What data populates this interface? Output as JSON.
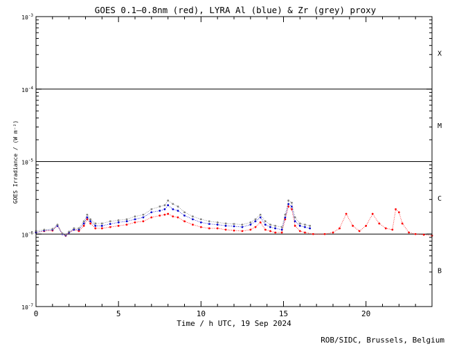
{
  "chart_data": {
    "type": "scatter",
    "title": "GOES 0.1—0.8nm (red), LYRA Al (blue) & Zr (grey) proxy",
    "xlabel": "Time / h UTC, 19 Sep 2024",
    "ylabel": "GOES Irradiance / (W m⁻²)",
    "xlim": [
      0,
      24
    ],
    "ylim": [
      1e-07,
      0.001
    ],
    "yscale": "log",
    "x_ticks": [
      0,
      5,
      10,
      15,
      20
    ],
    "y_ticks": [
      {
        "value": 1e-07,
        "base": "10",
        "exp": "-7"
      },
      {
        "value": 1e-06,
        "base": "10",
        "exp": "-6"
      },
      {
        "value": 1e-05,
        "base": "10",
        "exp": "-5"
      },
      {
        "value": 0.0001,
        "base": "10",
        "exp": "-4"
      },
      {
        "value": 0.001,
        "base": "10",
        "exp": "-3"
      }
    ],
    "flare_classes": [
      {
        "label": "B",
        "value": 3.16e-07
      },
      {
        "label": "C",
        "value": 3.16e-06
      },
      {
        "label": "M",
        "value": 3.16e-05
      },
      {
        "label": "X",
        "value": 0.000316
      }
    ],
    "threshold_lines": [
      1e-06,
      1e-05,
      0.0001
    ],
    "series": [
      {
        "name": "GOES 0.1—0.8nm",
        "color": "#ff0000",
        "x": [
          0.0,
          0.5,
          1.0,
          1.3,
          1.6,
          1.8,
          2.0,
          2.3,
          2.6,
          2.9,
          3.1,
          3.3,
          3.6,
          4.0,
          4.5,
          5.0,
          5.5,
          6.0,
          6.5,
          7.0,
          7.5,
          7.8,
          8.0,
          8.3,
          8.6,
          9.0,
          9.5,
          10.0,
          10.5,
          11.0,
          11.5,
          12.0,
          12.5,
          13.0,
          13.3,
          13.6,
          13.9,
          14.2,
          14.5,
          14.9,
          15.1,
          15.3,
          15.5,
          15.7,
          16.0,
          16.3,
          16.8,
          17.5,
          18.0,
          18.4,
          18.8,
          19.2,
          19.6,
          20.0,
          20.4,
          20.8,
          21.2,
          21.6,
          21.8,
          22.0,
          22.2,
          22.6,
          23.0,
          23.5,
          24.0
        ],
        "y": [
          1.05e-06,
          1.1e-06,
          1.12e-06,
          1.3e-06,
          1e-06,
          9.5e-07,
          1.05e-06,
          1.15e-06,
          1.1e-06,
          1.3e-06,
          1.6e-06,
          1.4e-06,
          1.2e-06,
          1.2e-06,
          1.25e-06,
          1.3e-06,
          1.35e-06,
          1.45e-06,
          1.5e-06,
          1.7e-06,
          1.8e-06,
          1.85e-06,
          1.9e-06,
          1.75e-06,
          1.7e-06,
          1.5e-06,
          1.35e-06,
          1.25e-06,
          1.2e-06,
          1.2e-06,
          1.15e-06,
          1.12e-06,
          1.1e-06,
          1.15e-06,
          1.25e-06,
          1.45e-06,
          1.15e-06,
          1.1e-06,
          1.05e-06,
          1.05e-06,
          1.6e-06,
          2.4e-06,
          2.2e-06,
          1.3e-06,
          1.1e-06,
          1.05e-06,
          1e-06,
          1e-06,
          1.05e-06,
          1.2e-06,
          1.9e-06,
          1.3e-06,
          1.1e-06,
          1.3e-06,
          1.9e-06,
          1.4e-06,
          1.2e-06,
          1.15e-06,
          2.2e-06,
          2e-06,
          1.4e-06,
          1.05e-06,
          1e-06,
          9.8e-07,
          9.5e-07
        ]
      },
      {
        "name": "LYRA Al",
        "color": "#0000cc",
        "x": [
          0.0,
          0.5,
          1.0,
          1.3,
          1.6,
          1.8,
          2.0,
          2.3,
          2.6,
          2.9,
          3.1,
          3.3,
          3.6,
          4.0,
          4.5,
          5.0,
          5.5,
          6.0,
          6.5,
          7.0,
          7.5,
          7.8,
          8.0,
          8.3,
          8.6,
          9.0,
          9.5,
          10.0,
          10.5,
          11.0,
          11.5,
          12.0,
          12.5,
          13.0,
          13.3,
          13.6,
          13.9,
          14.2,
          14.5,
          14.9,
          15.1,
          15.3,
          15.5,
          15.7,
          16.0,
          16.3,
          16.6
        ],
        "y": [
          1.05e-06,
          1.12e-06,
          1.15e-06,
          1.3e-06,
          1e-06,
          9.6e-07,
          1.05e-06,
          1.15e-06,
          1.15e-06,
          1.4e-06,
          1.7e-06,
          1.5e-06,
          1.3e-06,
          1.3e-06,
          1.38e-06,
          1.45e-06,
          1.5e-06,
          1.6e-06,
          1.7e-06,
          2e-06,
          2.1e-06,
          2.2e-06,
          2.5e-06,
          2.2e-06,
          2.1e-06,
          1.8e-06,
          1.6e-06,
          1.45e-06,
          1.38e-06,
          1.35e-06,
          1.3e-06,
          1.28e-06,
          1.25e-06,
          1.35e-06,
          1.5e-06,
          1.7e-06,
          1.35e-06,
          1.25e-06,
          1.2e-06,
          1.15e-06,
          1.7e-06,
          2.6e-06,
          2.4e-06,
          1.5e-06,
          1.3e-06,
          1.25e-06,
          1.2e-06
        ]
      },
      {
        "name": "LYRA Zr",
        "color": "#808080",
        "x": [
          0.0,
          0.5,
          1.0,
          1.3,
          1.6,
          1.8,
          2.0,
          2.3,
          2.6,
          2.9,
          3.1,
          3.3,
          3.6,
          4.0,
          4.5,
          5.0,
          5.5,
          6.0,
          6.5,
          7.0,
          7.5,
          7.8,
          8.0,
          8.3,
          8.6,
          9.0,
          9.5,
          10.0,
          10.5,
          11.0,
          11.5,
          12.0,
          12.5,
          13.0,
          13.3,
          13.6,
          13.9,
          14.2,
          14.5,
          14.9,
          15.1,
          15.3,
          15.5,
          15.7,
          16.0,
          16.3,
          16.6
        ],
        "y": [
          1.1e-06,
          1.15e-06,
          1.18e-06,
          1.35e-06,
          1.02e-06,
          9.8e-07,
          1.08e-06,
          1.2e-06,
          1.2e-06,
          1.5e-06,
          1.85e-06,
          1.6e-06,
          1.4e-06,
          1.4e-06,
          1.5e-06,
          1.55e-06,
          1.6e-06,
          1.75e-06,
          1.85e-06,
          2.2e-06,
          2.4e-06,
          2.5e-06,
          2.9e-06,
          2.6e-06,
          2.4e-06,
          2e-06,
          1.75e-06,
          1.6e-06,
          1.5e-06,
          1.45e-06,
          1.4e-06,
          1.38e-06,
          1.35e-06,
          1.45e-06,
          1.6e-06,
          1.85e-06,
          1.5e-06,
          1.35e-06,
          1.3e-06,
          1.25e-06,
          1.85e-06,
          2.9e-06,
          2.7e-06,
          1.7e-06,
          1.4e-06,
          1.35e-06,
          1.3e-06
        ]
      }
    ]
  },
  "footer": {
    "credit": "ROB/SIDC, Brussels, Belgium"
  }
}
